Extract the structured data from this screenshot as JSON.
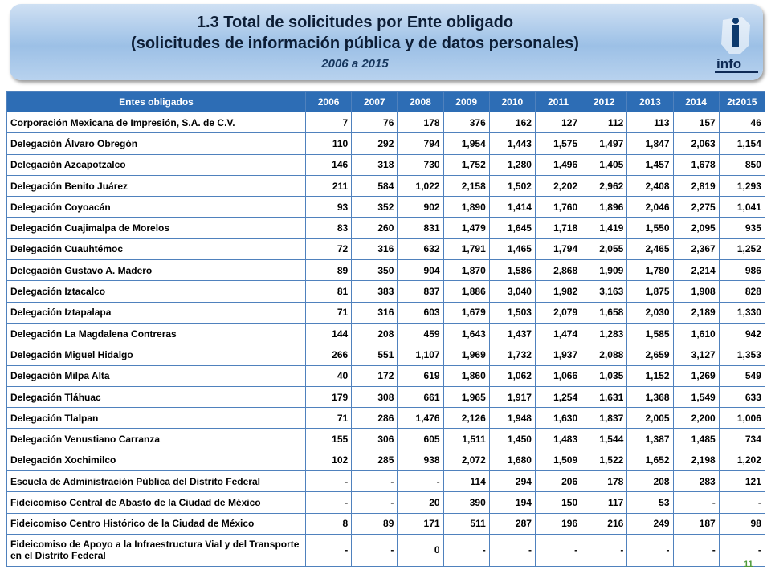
{
  "header": {
    "title": "1.3 Total de solicitudes por Ente obligado",
    "subtitle": "(solicitudes de información pública y de datos personales)",
    "period": "2006 a 2015",
    "logo": "info"
  },
  "table": {
    "columns": [
      "Entes obligados",
      "2006",
      "2007",
      "2008",
      "2009",
      "2010",
      "2011",
      "2012",
      "2013",
      "2014",
      "2t2015"
    ],
    "rows": [
      [
        "Corporación Mexicana de Impresión, S.A. de C.V.",
        "7",
        "76",
        "178",
        "376",
        "162",
        "127",
        "112",
        "113",
        "157",
        "46"
      ],
      [
        "Delegación Álvaro Obregón",
        "110",
        "292",
        "794",
        "1,954",
        "1,443",
        "1,575",
        "1,497",
        "1,847",
        "2,063",
        "1,154"
      ],
      [
        "Delegación Azcapotzalco",
        "146",
        "318",
        "730",
        "1,752",
        "1,280",
        "1,496",
        "1,405",
        "1,457",
        "1,678",
        "850"
      ],
      [
        "Delegación Benito Juárez",
        "211",
        "584",
        "1,022",
        "2,158",
        "1,502",
        "2,202",
        "2,962",
        "2,408",
        "2,819",
        "1,293"
      ],
      [
        "Delegación Coyoacán",
        "93",
        "352",
        "902",
        "1,890",
        "1,414",
        "1,760",
        "1,896",
        "2,046",
        "2,275",
        "1,041"
      ],
      [
        "Delegación Cuajimalpa de Morelos",
        "83",
        "260",
        "831",
        "1,479",
        "1,645",
        "1,718",
        "1,419",
        "1,550",
        "2,095",
        "935"
      ],
      [
        "Delegación Cuauhtémoc",
        "72",
        "316",
        "632",
        "1,791",
        "1,465",
        "1,794",
        "2,055",
        "2,465",
        "2,367",
        "1,252"
      ],
      [
        "Delegación Gustavo A. Madero",
        "89",
        "350",
        "904",
        "1,870",
        "1,586",
        "2,868",
        "1,909",
        "1,780",
        "2,214",
        "986"
      ],
      [
        "Delegación Iztacalco",
        "81",
        "383",
        "837",
        "1,886",
        "3,040",
        "1,982",
        "3,163",
        "1,875",
        "1,908",
        "828"
      ],
      [
        "Delegación Iztapalapa",
        "71",
        "316",
        "603",
        "1,679",
        "1,503",
        "2,079",
        "1,658",
        "2,030",
        "2,189",
        "1,330"
      ],
      [
        "Delegación La Magdalena Contreras",
        "144",
        "208",
        "459",
        "1,643",
        "1,437",
        "1,474",
        "1,283",
        "1,585",
        "1,610",
        "942"
      ],
      [
        "Delegación Miguel Hidalgo",
        "266",
        "551",
        "1,107",
        "1,969",
        "1,732",
        "1,937",
        "2,088",
        "2,659",
        "3,127",
        "1,353"
      ],
      [
        "Delegación Milpa Alta",
        "40",
        "172",
        "619",
        "1,860",
        "1,062",
        "1,066",
        "1,035",
        "1,152",
        "1,269",
        "549"
      ],
      [
        "Delegación Tláhuac",
        "179",
        "308",
        "661",
        "1,965",
        "1,917",
        "1,254",
        "1,631",
        "1,368",
        "1,549",
        "633"
      ],
      [
        "Delegación Tlalpan",
        "71",
        "286",
        "1,476",
        "2,126",
        "1,948",
        "1,630",
        "1,837",
        "2,005",
        "2,200",
        "1,006"
      ],
      [
        "Delegación Venustiano Carranza",
        "155",
        "306",
        "605",
        "1,511",
        "1,450",
        "1,483",
        "1,544",
        "1,387",
        "1,485",
        "734"
      ],
      [
        "Delegación Xochimilco",
        "102",
        "285",
        "938",
        "2,072",
        "1,680",
        "1,509",
        "1,522",
        "1,652",
        "2,198",
        "1,202"
      ],
      [
        "Escuela de Administración Pública del Distrito Federal",
        "-",
        "-",
        "-",
        "114",
        "294",
        "206",
        "178",
        "208",
        "283",
        "121"
      ],
      [
        "Fideicomiso Central de Abasto de la Ciudad de México",
        "-",
        "-",
        "20",
        "390",
        "194",
        "150",
        "117",
        "53",
        "-",
        "-"
      ],
      [
        "Fideicomiso Centro Histórico de la Ciudad de México",
        "8",
        "89",
        "171",
        "511",
        "287",
        "196",
        "216",
        "249",
        "187",
        "98"
      ],
      [
        "Fideicomiso de Apoyo a la Infraestructura Vial y del Transporte en el Distrito Federal",
        "-",
        "-",
        "0",
        "-",
        "-",
        "-",
        "-",
        "-",
        "-",
        "-"
      ]
    ]
  },
  "page_number": "11"
}
